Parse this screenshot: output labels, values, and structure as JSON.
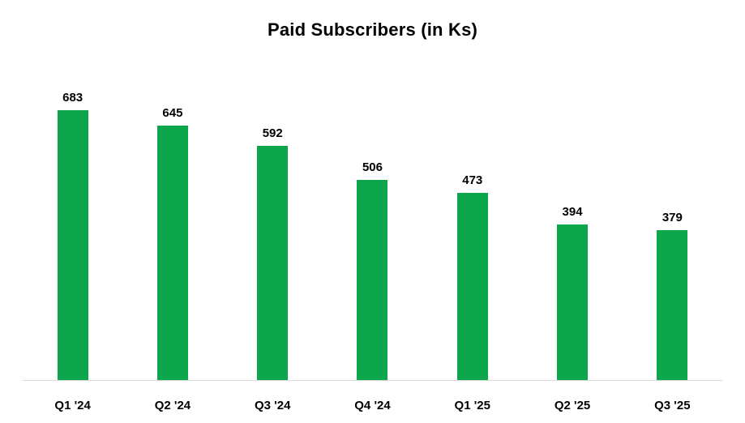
{
  "chart_data": {
    "type": "bar",
    "title": "Paid Subscribers (in Ks)",
    "categories": [
      "Q1 '24",
      "Q2 '24",
      "Q3 '24",
      "Q4 '24",
      "Q1 '25",
      "Q2 '25",
      "Q3 '25"
    ],
    "values": [
      683,
      645,
      592,
      506,
      473,
      394,
      379
    ],
    "xlabel": "",
    "ylabel": "",
    "ylim": [
      0,
      700
    ],
    "grid": false,
    "legend": false,
    "value_labels": true,
    "bar_color": "#0ea64d",
    "axis_line_color": "#d9d9d9",
    "text_color": "#000000",
    "background_color": "#ffffff"
  }
}
